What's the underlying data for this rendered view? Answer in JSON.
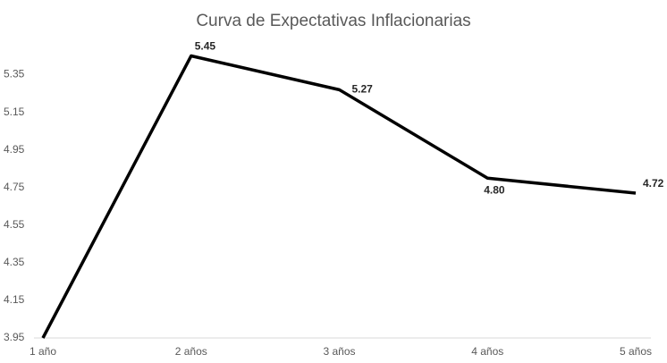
{
  "chart_data": {
    "type": "line",
    "title": "Curva de Expectativas Inflacionarias",
    "categories": [
      "1 año",
      "2 años",
      "3 años",
      "4 años",
      "5 años"
    ],
    "values": [
      3.95,
      5.45,
      5.27,
      4.8,
      4.72
    ],
    "value_labels": [
      null,
      "5.45",
      "5.27",
      "4.80",
      "4.72"
    ],
    "color": "#000000",
    "ylim": [
      3.95,
      5.5
    ],
    "yticks": [
      3.95,
      4.15,
      4.35,
      4.55,
      4.75,
      4.95,
      5.15,
      5.35
    ],
    "grid": false
  }
}
